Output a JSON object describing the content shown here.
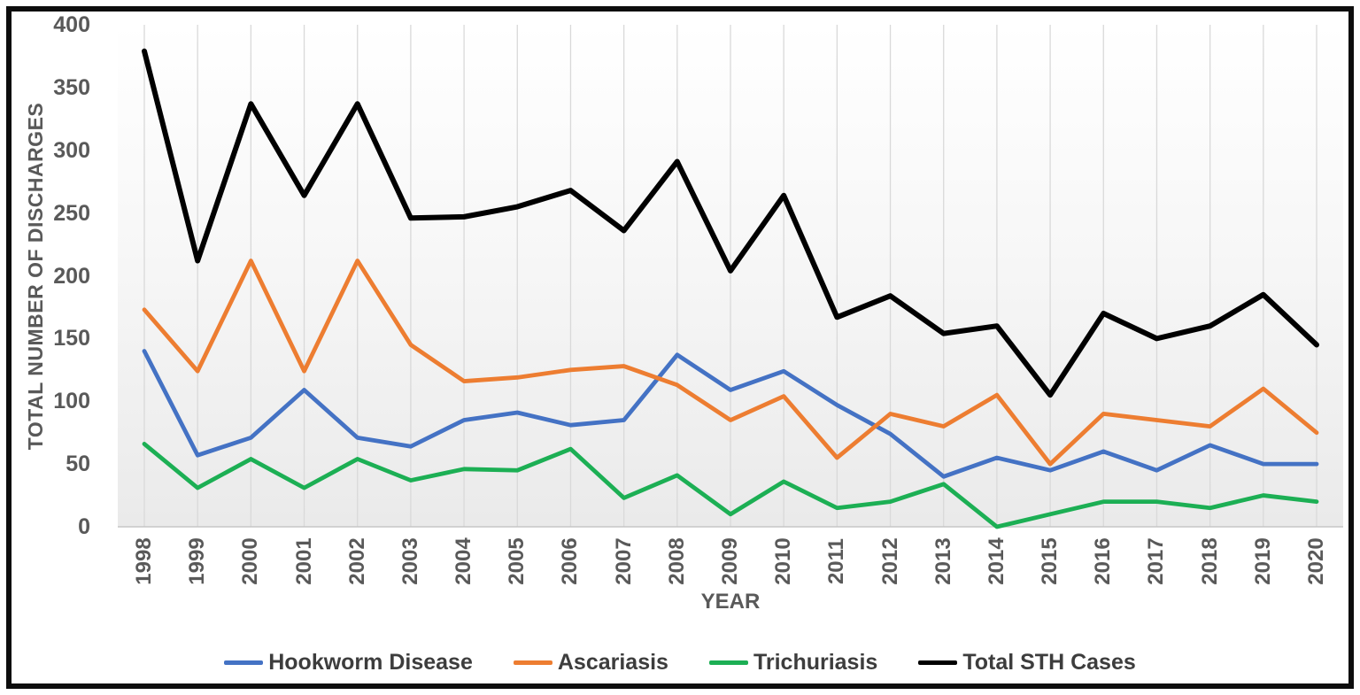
{
  "chart_data": {
    "type": "line",
    "title": "",
    "xlabel": "YEAR",
    "ylabel": "TOTAL NUMBER OF DISCHARGES",
    "x": [
      "1998",
      "1999",
      "2000",
      "2001",
      "2002",
      "2003",
      "2004",
      "2005",
      "2006",
      "2007",
      "2008",
      "2009",
      "2010",
      "2011",
      "2012",
      "2013",
      "2014",
      "2015",
      "2016",
      "2017",
      "2018",
      "2019",
      "2020"
    ],
    "ylim": [
      0,
      400
    ],
    "y_ticks": [
      400,
      350,
      300,
      250,
      200,
      150,
      100,
      50,
      0
    ],
    "grid": "vertical-only",
    "legend_position": "bottom",
    "series": [
      {
        "name": "Hookworm Disease",
        "color": "#4472C4",
        "values": [
          140,
          57,
          71,
          109,
          71,
          64,
          85,
          91,
          81,
          85,
          137,
          109,
          124,
          97,
          74,
          40,
          55,
          45,
          60,
          45,
          65,
          50,
          50
        ]
      },
      {
        "name": "Ascariasis",
        "color": "#ED7D31",
        "values": [
          173,
          124,
          212,
          124,
          212,
          145,
          116,
          119,
          125,
          128,
          113,
          85,
          104,
          55,
          90,
          80,
          105,
          50,
          90,
          85,
          80,
          110,
          75
        ]
      },
      {
        "name": "Trichuriasis",
        "color": "#1CAF54",
        "values": [
          66,
          31,
          54,
          31,
          54,
          37,
          46,
          45,
          62,
          23,
          41,
          10,
          36,
          15,
          20,
          34,
          0,
          10,
          20,
          20,
          15,
          25,
          20
        ]
      },
      {
        "name": "Total STH Cases",
        "color": "#000000",
        "values": [
          379,
          212,
          337,
          264,
          337,
          246,
          247,
          255,
          268,
          236,
          291,
          204,
          264,
          167,
          184,
          154,
          160,
          105,
          170,
          150,
          160,
          185,
          145
        ]
      }
    ],
    "style": {
      "gridline_color": "#d9d9d9",
      "axis_line_color": "#c6c6c6",
      "tick_label_color": "#595959",
      "legend_label_color": "#3d3d3d",
      "plot_bg_top": "#ffffff",
      "plot_bg_bottom": "#eaeaea"
    }
  }
}
